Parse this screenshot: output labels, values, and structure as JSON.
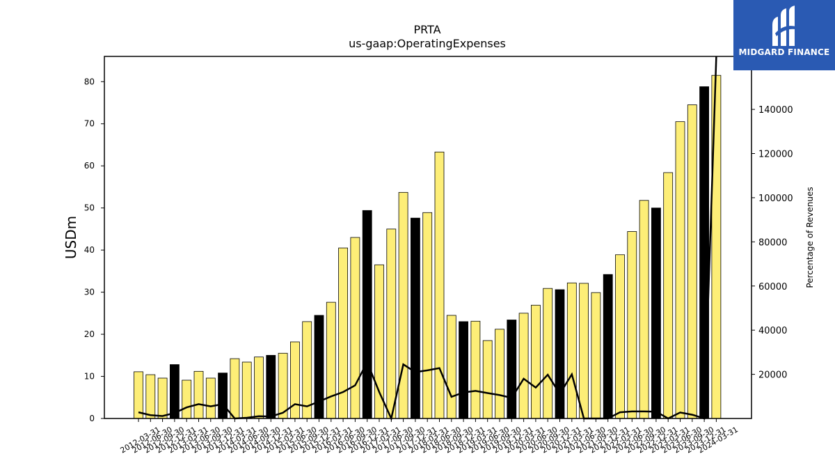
{
  "logo": {
    "text": "MIDGARD FINANCE"
  },
  "chart_data": {
    "type": "bar",
    "title": "PRTA",
    "subtitle": "us-gaap:OperatingExpenses",
    "ylabel": "USDm",
    "y2label": "Percentage of Revenues",
    "ylim": [
      0,
      86
    ],
    "y2lim": [
      0,
      164000
    ],
    "yticks": [
      0,
      10,
      20,
      30,
      40,
      50,
      60,
      70,
      80
    ],
    "y2ticks": [
      20000,
      40000,
      60000,
      80000,
      100000,
      120000,
      140000
    ],
    "colors": {
      "bar": "#fdee77",
      "bar_q4": "#000000",
      "line": "#000000"
    },
    "categories": [
      "2012-03-31",
      "2012-06-30",
      "2012-09-30",
      "2012-12-31",
      "2013-03-31",
      "2013-06-30",
      "2013-09-30",
      "2013-12-31",
      "2014-03-31",
      "2014-06-30",
      "2014-09-30",
      "2014-12-31",
      "2015-03-31",
      "2015-06-30",
      "2015-09-30",
      "2015-12-31",
      "2016-03-31",
      "2016-06-30",
      "2016-09-30",
      "2016-12-31",
      "2017-03-31",
      "2017-06-30",
      "2017-09-30",
      "2017-12-31",
      "2018-03-31",
      "2018-06-30",
      "2018-09-30",
      "2018-12-31",
      "2019-03-31",
      "2019-06-30",
      "2019-09-30",
      "2019-12-31",
      "2020-03-31",
      "2020-06-30",
      "2020-09-30",
      "2020-12-31",
      "2021-03-31",
      "2021-06-30",
      "2021-09-30",
      "2021-12-31",
      "2022-03-31",
      "2022-06-30",
      "2022-09-30",
      "2022-12-31",
      "2023-03-31",
      "2023-06-30",
      "2023-09-30",
      "2023-12-31",
      "2024-03-31"
    ],
    "series": [
      {
        "type": "bar",
        "values": [
          11.1,
          10.4,
          9.6,
          12.8,
          9.1,
          11.2,
          9.6,
          10.8,
          14.2,
          13.4,
          14.6,
          15.0,
          15.5,
          18.2,
          23.0,
          24.5,
          27.6,
          40.5,
          43.0,
          49.4,
          36.5,
          45.0,
          53.7,
          47.6,
          48.9,
          63.3,
          24.5,
          23.0,
          23.1,
          18.5,
          21.2,
          23.4,
          25.0,
          26.9,
          30.9,
          30.6,
          32.2,
          32.1,
          29.9,
          34.2,
          38.9,
          44.4,
          51.8,
          50.0,
          58.4,
          70.5,
          74.5,
          78.8,
          81.5
        ],
        "highlight": [
          false,
          false,
          false,
          true,
          false,
          false,
          false,
          true,
          false,
          false,
          false,
          true,
          false,
          false,
          false,
          true,
          false,
          false,
          false,
          true,
          false,
          false,
          false,
          true,
          false,
          false,
          false,
          true,
          false,
          false,
          false,
          true,
          false,
          false,
          false,
          true,
          false,
          false,
          false,
          true,
          false,
          false,
          false,
          true,
          false,
          false,
          false,
          true,
          false
        ]
      },
      {
        "type": "line",
        "axis": "right",
        "values": [
          2800,
          1500,
          1100,
          2500,
          5000,
          6500,
          5500,
          6500,
          0,
          300,
          1000,
          900,
          2600,
          6500,
          5500,
          7700,
          10000,
          12000,
          15000,
          25500,
          12000,
          0,
          24500,
          21000,
          21800,
          22800,
          9800,
          11800,
          12500,
          11500,
          10600,
          9300,
          18000,
          14000,
          19800,
          11200,
          20000,
          0,
          0,
          0,
          2800,
          3200,
          3200,
          3100,
          0,
          2700,
          1700,
          0,
          164000
        ]
      }
    ]
  }
}
